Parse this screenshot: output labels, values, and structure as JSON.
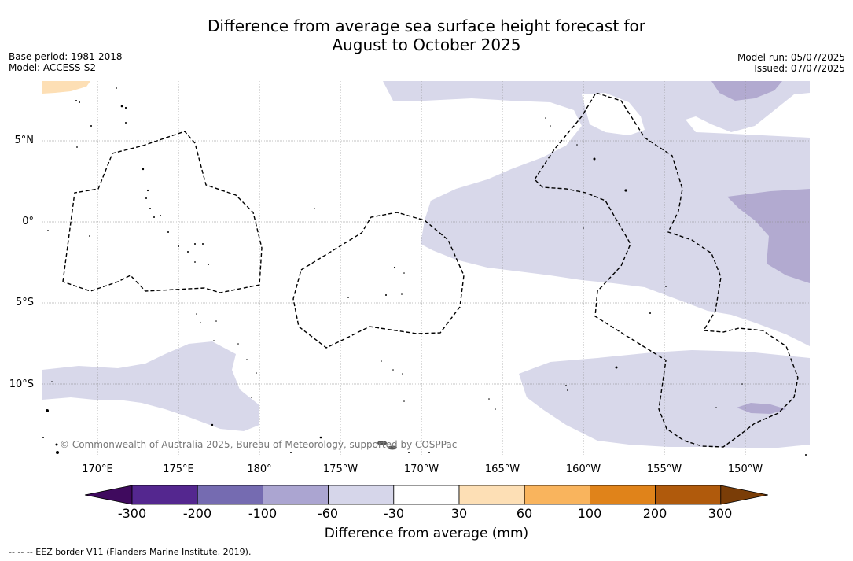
{
  "title_line1": "Difference from average sea surface height forecast for",
  "title_line2": "August to October 2025",
  "base_period": "Base period: 1981-2018",
  "model": "Model: ACCESS-S2",
  "model_run": "Model run: 05/07/2025",
  "issued": "Issued: 07/07/2025",
  "copyright": "© Commonwealth of Australia 2025, Bureau of Meteorology, supported by COSPPac",
  "lat_labels": [
    "5°N",
    "0°",
    "5°S",
    "10°S"
  ],
  "lon_labels": [
    "170°E",
    "175°E",
    "180°",
    "175°W",
    "170°W",
    "165°W",
    "160°W",
    "155°W",
    "150°W"
  ],
  "colorbar": {
    "ticks": [
      "-300",
      "-200",
      "-100",
      "-60",
      "-30",
      "30",
      "60",
      "100",
      "200",
      "300"
    ],
    "colors": [
      "#3f0a5e",
      "#54278f",
      "#756bb1",
      "#aba5d1",
      "#d6d6ea",
      "#ffffff",
      "#fddfb5",
      "#f9b45d",
      "#e0831a",
      "#b05a0c",
      "#7a3d07"
    ],
    "label": "Difference from average (mm)"
  },
  "footnote": "--  --  -- EEZ border V11 (Flanders Marine Institute, 2019).",
  "colors": {
    "light_purple": "#d8d8ea",
    "mid_purple": "#b2aad0",
    "light_orange": "#fddfb5",
    "grid": "#888888"
  }
}
